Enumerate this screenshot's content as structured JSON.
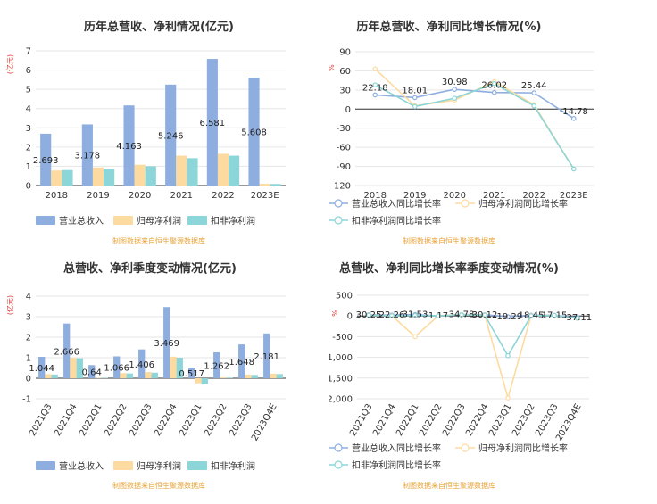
{
  "colors": {
    "revenue": "#8eaee0",
    "net_profit": "#fddba0",
    "deducted_profit": "#8cd5d8",
    "revenue_line": "#8eaee0",
    "net_line": "#fddba0",
    "deducted_line": "#8cd5d8",
    "grid": "#e6e6e6",
    "axis": "#333333",
    "source": "#e8a43a",
    "unit": "#e0342f"
  },
  "source_note": "制图数据来自恒生聚源数据库",
  "chart_data": [
    {
      "id": "annual_amount",
      "type": "bar",
      "title": "历年总营收、净利情况(亿元)",
      "unit_label": "(亿元)",
      "categories": [
        "2018",
        "2019",
        "2020",
        "2021",
        "2022",
        "2023E"
      ],
      "series": [
        {
          "name": "营业总收入",
          "values": [
            2.693,
            3.178,
            4.163,
            5.246,
            6.581,
            5.608
          ]
        },
        {
          "name": "归母净利润",
          "values": [
            0.78,
            0.94,
            1.08,
            1.55,
            1.65,
            0.09
          ]
        },
        {
          "name": "扣非净利润",
          "values": [
            0.8,
            0.88,
            1.0,
            1.42,
            1.55,
            0.08
          ]
        }
      ],
      "data_labels": [
        "2.693",
        "3.178",
        "4.163",
        "5.246",
        "6.581",
        "5.608"
      ],
      "ylim": [
        0,
        7
      ],
      "yticks": [
        "0",
        "1",
        "2",
        "3",
        "4",
        "5",
        "6",
        "7"
      ],
      "legend": "bottom",
      "grid": true
    },
    {
      "id": "annual_growth",
      "type": "line",
      "title": "历年总营收、净利同比增长情况(%)",
      "unit_label": "%",
      "categories": [
        "2018",
        "2019",
        "2020",
        "2021",
        "2022",
        "2023E"
      ],
      "series": [
        {
          "name": "营业总收入同比增长率",
          "values": [
            22.18,
            18.01,
            30.98,
            26.02,
            25.44,
            -14.78
          ]
        },
        {
          "name": "归母净利润同比增长率",
          "values": [
            63,
            5,
            14,
            43,
            7,
            -94
          ]
        },
        {
          "name": "扣非净利润同比增长率",
          "values": [
            38,
            4,
            17,
            40,
            5,
            -94
          ]
        }
      ],
      "data_labels": [
        "22.18",
        "18.01",
        "30.98",
        "26.02",
        "25.44",
        "-14.78"
      ],
      "ylim": [
        -120,
        90
      ],
      "yticks": [
        "90",
        "60",
        "30",
        "0",
        "-30",
        "-60",
        "-90",
        "-120"
      ],
      "legend": "bottom",
      "grid": true
    },
    {
      "id": "quarter_amount",
      "type": "bar",
      "title": "总营收、净利季度变动情况(亿元)",
      "unit_label": "(亿元)",
      "categories": [
        "2021Q3",
        "2021Q4",
        "2022Q1",
        "2022Q2",
        "2022Q3",
        "2022Q4",
        "2023Q1",
        "2023Q2",
        "2023Q3",
        "2023Q4E"
      ],
      "series": [
        {
          "name": "营业总收入",
          "values": [
            1.044,
            2.666,
            0.64,
            1.066,
            1.406,
            3.469,
            0.517,
            1.262,
            1.648,
            2.181
          ]
        },
        {
          "name": "归母净利润",
          "values": [
            0.2,
            1.0,
            0.02,
            0.25,
            0.3,
            1.05,
            -0.25,
            0.04,
            0.18,
            0.22
          ]
        },
        {
          "name": "扣非净利润",
          "values": [
            0.18,
            0.97,
            0.02,
            0.23,
            0.27,
            1.0,
            -0.3,
            0.03,
            0.16,
            0.2
          ]
        }
      ],
      "data_labels": [
        "1.044",
        "2.666",
        "0.64",
        "1.066",
        "1.406",
        "3.469",
        "0.517",
        "1.262",
        "1.648",
        "2.181"
      ],
      "ylim": [
        -1,
        4
      ],
      "yticks": [
        "4",
        "3",
        "2",
        "1",
        "0",
        "-1"
      ],
      "legend": "bottom",
      "grid": true
    },
    {
      "id": "quarter_growth",
      "type": "line",
      "title": "总营收、净利同比增长率季度变动情况(%)",
      "unit_label": "%",
      "categories": [
        "2021Q3",
        "2021Q4",
        "2022Q1",
        "2022Q2",
        "2022Q3",
        "2022Q4",
        "2023Q1",
        "2023Q2",
        "2023Q3",
        "2023Q4E"
      ],
      "series": [
        {
          "name": "营业总收入同比增长率",
          "values": [
            30.25,
            22.26,
            31.53,
            1.17,
            34.78,
            30.12,
            -19.29,
            18.45,
            17.15,
            -37.11
          ]
        },
        {
          "name": "归母净利润同比增长率",
          "values": [
            20,
            10,
            -500,
            5,
            30,
            25,
            -1980,
            10,
            15,
            -60
          ]
        },
        {
          "name": "扣非净利润同比增长率",
          "values": [
            15,
            5,
            10,
            3,
            25,
            20,
            -960,
            5,
            12,
            -55
          ]
        }
      ],
      "data_labels": [
        "30.25",
        "22.26",
        "31.53",
        "1.17",
        "34.78",
        "30.12",
        "-19.29",
        "18.45",
        "17.15",
        "-37.11"
      ],
      "ylim": [
        -2000,
        500
      ],
      "yticks": [
        "500",
        "0",
        "-500",
        "-1,000",
        "-1,500",
        "-2,000"
      ],
      "legend": "bottom",
      "grid": true
    }
  ]
}
